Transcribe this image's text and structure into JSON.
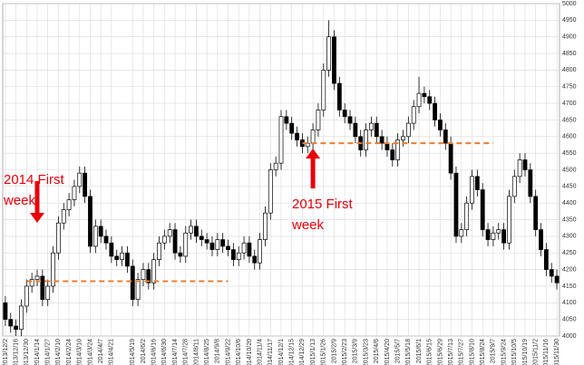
{
  "chart_data": {
    "type": "candlestick",
    "categories": [
      "2013/12/2",
      null,
      "2013/12/16",
      null,
      "2013/12/30",
      null,
      "2014/1/14",
      null,
      "2014/1/27",
      null,
      "2014/2/10",
      null,
      "2014/2/24",
      null,
      "2014/3/10",
      null,
      "2014/3/24",
      null,
      "2014/4/7",
      null,
      "2014/4/21",
      null,
      null,
      null,
      "2014/5/19",
      null,
      "2014/6/2",
      null,
      "2014/6/16",
      null,
      "2014/6/30",
      null,
      "2014/7/14",
      null,
      "2014/7/28",
      null,
      "2014/8/11",
      null,
      "2014/8/25",
      null,
      "2014/9/8",
      null,
      "2014/9/22",
      null,
      "2014/10/6",
      null,
      "2014/10/20",
      null,
      "2014/11/4",
      null,
      "2014/11/17",
      null,
      "2014/12/1",
      null,
      "2014/12/15",
      null,
      "2014/12/29",
      null,
      "2015/1/13",
      null,
      "2015/1/26",
      null,
      "2015/2/9",
      null,
      "2015/2/23",
      null,
      "2015/3/9",
      null,
      "2015/3/23",
      null,
      "2015/4/6",
      null,
      "2015/4/20",
      null,
      "2015/5/7",
      null,
      "2015/5/18",
      null,
      "2015/6/1",
      null,
      "2015/6/15",
      null,
      "2015/6/29",
      null,
      "2015/7/13",
      null,
      "2015/7/27",
      null,
      "2015/8/10",
      null,
      "2015/8/24",
      null,
      "2015/9/7",
      null,
      "2015/9/24",
      null,
      "2015/10/5",
      null,
      "2015/10/19",
      null,
      "2015/11/2",
      null,
      "2015/11/16",
      null,
      "2015/11/30"
    ],
    "open": [
      4100,
      4050,
      4030,
      4020,
      4090,
      4150,
      4170,
      4180,
      4110,
      4150,
      4250,
      4340,
      4380,
      4410,
      4450,
      4490,
      4420,
      4270,
      4330,
      4300,
      4280,
      4240,
      4230,
      4250,
      4210,
      4110,
      4170,
      4200,
      4160,
      4230,
      4280,
      4300,
      4320,
      4250,
      4240,
      4310,
      4330,
      4300,
      4290,
      4280,
      4260,
      4290,
      4270,
      4260,
      4230,
      4250,
      4280,
      4240,
      4220,
      4290,
      4370,
      4500,
      4520,
      4660,
      4640,
      4610,
      4590,
      4570,
      4580,
      4620,
      4680,
      4800,
      4900,
      4760,
      4680,
      4660,
      4640,
      4600,
      4560,
      4620,
      4640,
      4600,
      4580,
      4560,
      4530,
      4590,
      4600,
      4640,
      4690,
      4730,
      4720,
      4700,
      4650,
      4620,
      4580,
      4490,
      4300,
      4320,
      4400,
      4480,
      4440,
      4320,
      4290,
      4310,
      4320,
      4280,
      4420,
      4480,
      4530,
      4500,
      4420,
      4320,
      4260,
      4200,
      4180
    ],
    "high": [
      4120,
      4070,
      4050,
      4110,
      4170,
      4190,
      4200,
      4200,
      4170,
      4270,
      4360,
      4400,
      4430,
      4470,
      4510,
      4510,
      4440,
      4350,
      4350,
      4320,
      4300,
      4260,
      4270,
      4270,
      4230,
      4190,
      4220,
      4220,
      4250,
      4300,
      4320,
      4340,
      4340,
      4270,
      4330,
      4350,
      4350,
      4320,
      4310,
      4300,
      4310,
      4310,
      4290,
      4280,
      4270,
      4300,
      4300,
      4260,
      4310,
      4390,
      4520,
      4540,
      4680,
      4680,
      4660,
      4630,
      4610,
      4600,
      4640,
      4700,
      4820,
      4950,
      4920,
      4780,
      4700,
      4680,
      4660,
      4620,
      4640,
      4660,
      4660,
      4620,
      4600,
      4580,
      4610,
      4620,
      4660,
      4710,
      4780,
      4750,
      4740,
      4720,
      4670,
      4640,
      4600,
      4510,
      4340,
      4420,
      4500,
      4500,
      4460,
      4340,
      4330,
      4340,
      4340,
      4440,
      4500,
      4550,
      4550,
      4520,
      4440,
      4340,
      4280,
      4220,
      4200
    ],
    "low": [
      4030,
      4010,
      4000,
      4000,
      4070,
      4130,
      4150,
      4090,
      4090,
      4130,
      4230,
      4320,
      4360,
      4390,
      4430,
      4400,
      4250,
      4250,
      4280,
      4260,
      4220,
      4210,
      4210,
      4190,
      4090,
      4090,
      4150,
      4140,
      4140,
      4210,
      4260,
      4280,
      4230,
      4220,
      4220,
      4290,
      4280,
      4270,
      4260,
      4240,
      4240,
      4250,
      4240,
      4210,
      4210,
      4230,
      4220,
      4200,
      4200,
      4270,
      4350,
      4480,
      4500,
      4620,
      4590,
      4570,
      4550,
      4550,
      4560,
      4600,
      4660,
      4780,
      4740,
      4660,
      4640,
      4620,
      4580,
      4540,
      4540,
      4600,
      4580,
      4560,
      4540,
      4510,
      4510,
      4570,
      4580,
      4620,
      4670,
      4700,
      4680,
      4630,
      4600,
      4560,
      4470,
      4280,
      4280,
      4300,
      4380,
      4420,
      4300,
      4270,
      4270,
      4290,
      4260,
      4260,
      4400,
      4460,
      4480,
      4400,
      4300,
      4240,
      4180,
      4160,
      4140
    ],
    "close": [
      4050,
      4030,
      4020,
      4090,
      4150,
      4170,
      4180,
      4110,
      4150,
      4250,
      4340,
      4380,
      4410,
      4450,
      4490,
      4420,
      4270,
      4330,
      4300,
      4280,
      4240,
      4230,
      4250,
      4210,
      4110,
      4170,
      4200,
      4160,
      4230,
      4280,
      4300,
      4320,
      4250,
      4240,
      4310,
      4330,
      4300,
      4290,
      4280,
      4260,
      4290,
      4270,
      4260,
      4230,
      4250,
      4280,
      4240,
      4220,
      4290,
      4370,
      4500,
      4520,
      4660,
      4640,
      4610,
      4590,
      4570,
      4580,
      4620,
      4680,
      4800,
      4900,
      4760,
      4680,
      4660,
      4640,
      4600,
      4560,
      4620,
      4640,
      4600,
      4580,
      4560,
      4530,
      4590,
      4600,
      4640,
      4690,
      4730,
      4720,
      4700,
      4650,
      4620,
      4580,
      4490,
      4300,
      4320,
      4400,
      4480,
      4440,
      4320,
      4290,
      4310,
      4320,
      4280,
      4420,
      4480,
      4530,
      4500,
      4420,
      4320,
      4260,
      4200,
      4180,
      4160
    ],
    "up_color": "#ffffff",
    "down_color": "#000000",
    "outline_color": "#000000",
    "ylim": [
      4000,
      5000
    ],
    "yticks": [
      4000,
      4050,
      4100,
      4150,
      4200,
      4250,
      4300,
      4350,
      4400,
      4450,
      4500,
      4550,
      4600,
      4650,
      4700,
      4750,
      4800,
      4850,
      4900,
      4950,
      5000
    ],
    "grid": true,
    "y_axis_side": "right",
    "hlines": [
      {
        "value": 4165,
        "x": [
          "2013/12/30",
          "2014/9/22"
        ],
        "color": "#ed7d31"
      },
      {
        "value": 4580,
        "x": [
          "2014/12/29",
          "2015/9/7"
        ],
        "color": "#ed7d31"
      }
    ],
    "annotations": [
      {
        "lines": [
          "2014 First",
          "week"
        ],
        "x": "2014/1/14",
        "arrow": "down",
        "color": "#e8000b"
      },
      {
        "lines": [
          "2015 First",
          "week"
        ],
        "x": "2015/1/13",
        "arrow": "up",
        "color": "#e8000b"
      }
    ]
  }
}
